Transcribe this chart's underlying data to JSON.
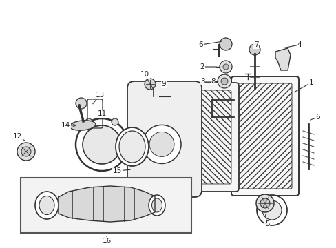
{
  "bg_color": "#ffffff",
  "fig_width": 4.89,
  "fig_height": 3.6,
  "dpi": 100,
  "line_color": "#333333",
  "text_color": "#222222",
  "label_fontsize": 7.5
}
